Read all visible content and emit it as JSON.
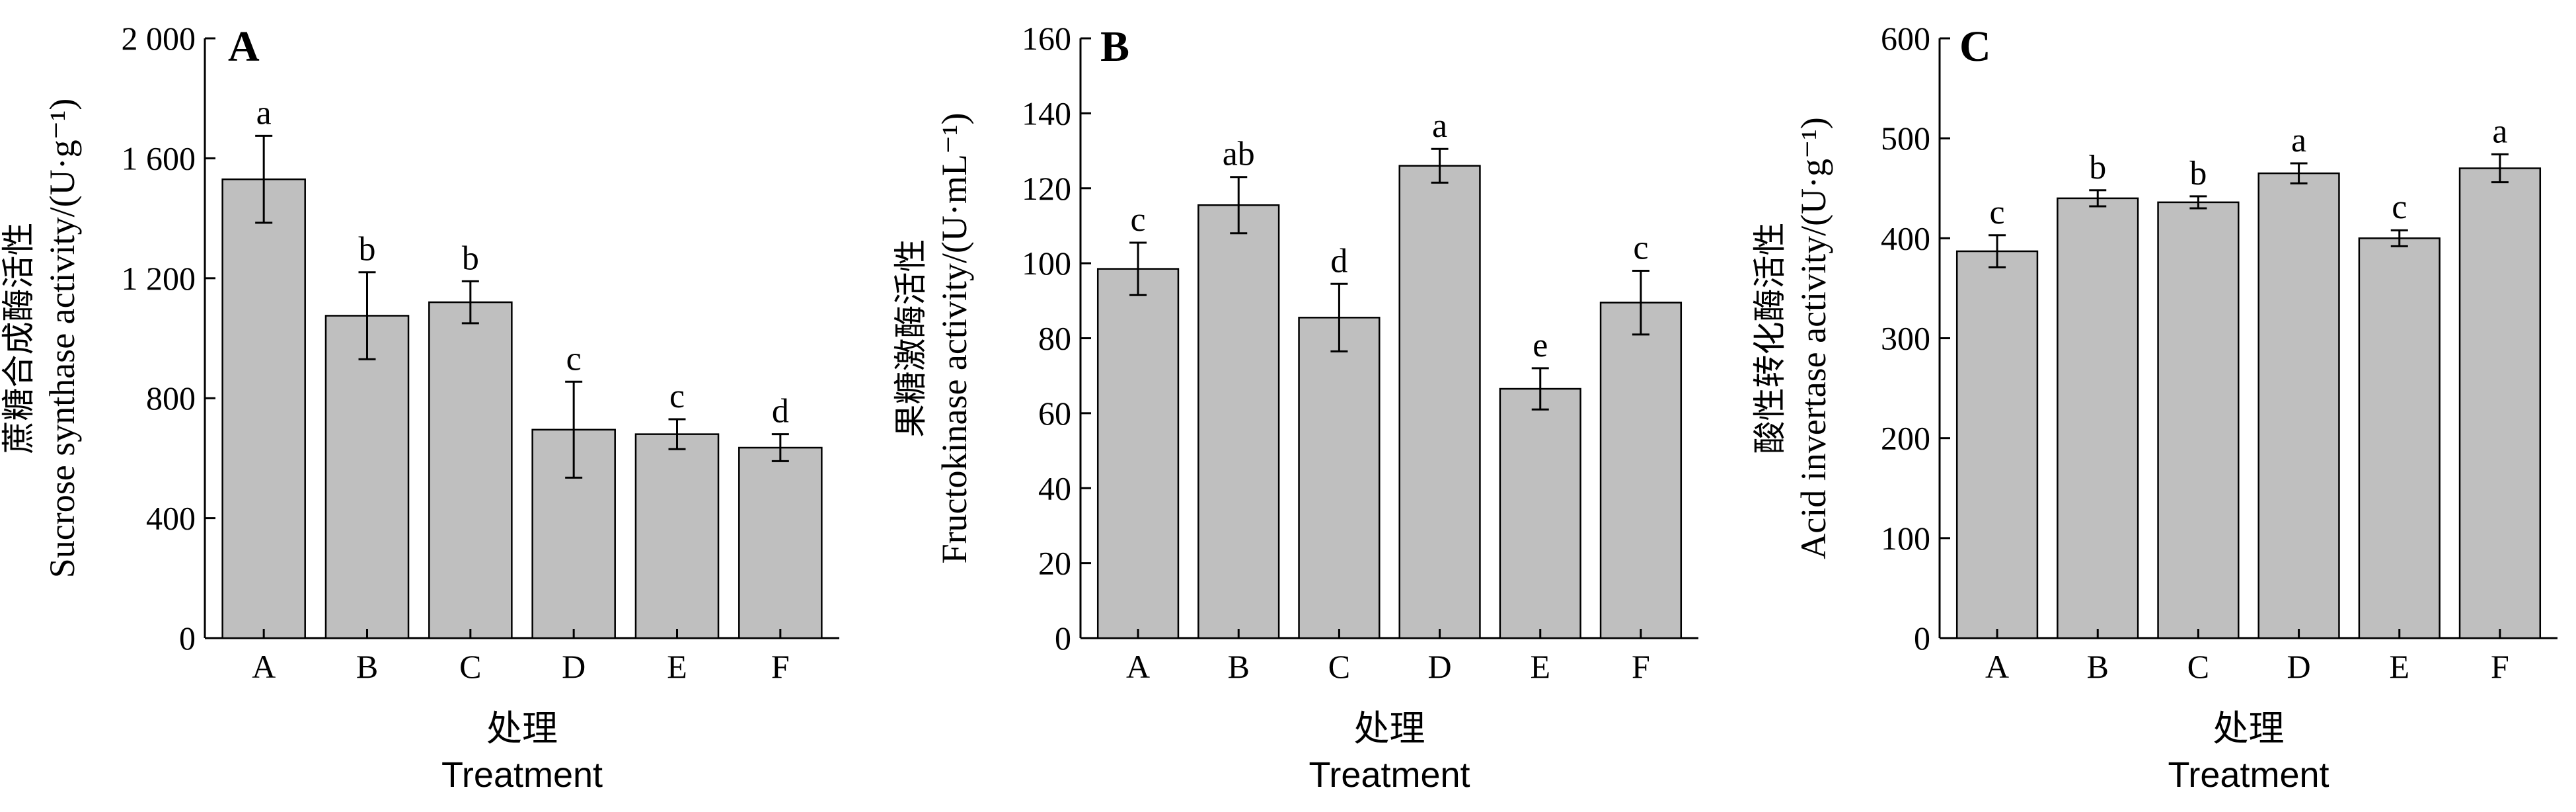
{
  "chart_data": [
    {
      "type": "bar",
      "panel_label": "A",
      "categories": [
        "A",
        "B",
        "C",
        "D",
        "E",
        "F"
      ],
      "values": [
        1530,
        1075,
        1120,
        695,
        680,
        635
      ],
      "error": [
        145,
        145,
        70,
        160,
        50,
        45
      ],
      "significance": [
        "a",
        "b",
        "b",
        "c",
        "c",
        "d"
      ],
      "ylim": [
        0,
        2000
      ],
      "yticks": [
        0,
        400,
        800,
        1200,
        1600,
        2000
      ],
      "ytick_labels": [
        "0",
        "400",
        "800",
        "1 200",
        "1 600",
        "2 000"
      ],
      "ylabel_cn": "蔗糖合成酶活性",
      "ylabel_en": "Sucrose synthase activity/(U·g⁻¹)",
      "xlabel_cn": "处理",
      "xlabel_en": "Treatment"
    },
    {
      "type": "bar",
      "panel_label": "B",
      "categories": [
        "A",
        "B",
        "C",
        "D",
        "E",
        "F"
      ],
      "values": [
        98.5,
        115.5,
        85.5,
        126,
        66.5,
        89.5
      ],
      "error": [
        7,
        7.5,
        9,
        4.5,
        5.5,
        8.5
      ],
      "significance": [
        "c",
        "ab",
        "d",
        "a",
        "e",
        "c"
      ],
      "ylim": [
        0,
        160
      ],
      "yticks": [
        0,
        20,
        40,
        60,
        80,
        100,
        120,
        140,
        160
      ],
      "ytick_labels": [
        "0",
        "20",
        "40",
        "60",
        "80",
        "100",
        "120",
        "140",
        "160"
      ],
      "ylabel_cn": "果糖激酶活性",
      "ylabel_en": "Fructokinase activity/(U·mL⁻¹)",
      "xlabel_cn": "处理",
      "xlabel_en": "Treatment"
    },
    {
      "type": "bar",
      "panel_label": "C",
      "categories": [
        "A",
        "B",
        "C",
        "D",
        "E",
        "F"
      ],
      "values": [
        387,
        440,
        436,
        465,
        400,
        470
      ],
      "error": [
        16,
        8,
        6,
        10,
        8,
        14
      ],
      "significance": [
        "c",
        "b",
        "b",
        "a",
        "c",
        "a"
      ],
      "ylim": [
        0,
        600
      ],
      "yticks": [
        0,
        100,
        200,
        300,
        400,
        500,
        600
      ],
      "ytick_labels": [
        "0",
        "100",
        "200",
        "300",
        "400",
        "500",
        "600"
      ],
      "ylabel_cn": "酸性转化酶活性",
      "ylabel_en": "Acid invertase activity/(U·g⁻¹)",
      "xlabel_cn": "处理",
      "xlabel_en": "Treatment"
    }
  ]
}
